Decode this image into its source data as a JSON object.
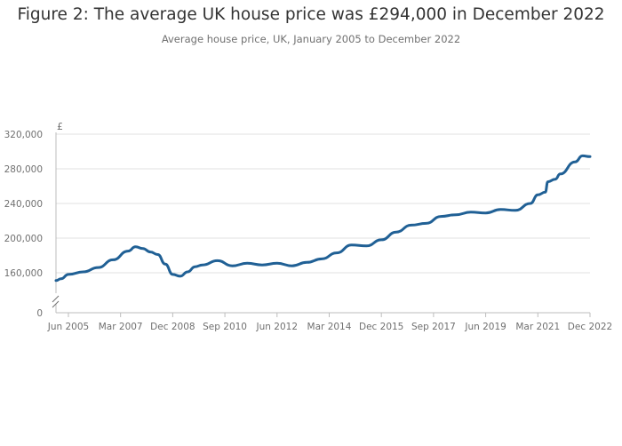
{
  "title": "Figure 2: The average UK house price was £294,000 in December 2022",
  "subtitle": "Average house price, UK, January 2005 to December 2022",
  "chart_data": {
    "type": "line",
    "title": "Figure 2: The average UK house price was £294,000 in December 2022",
    "subtitle": "Average house price, UK, January 2005 to December 2022",
    "y_unit": "£",
    "xlabel": "",
    "ylabel": "",
    "ylim": [
      0,
      320000
    ],
    "y_axis_break": [
      0,
      140000
    ],
    "y_ticks": [
      0,
      160000,
      200000,
      240000,
      280000,
      320000
    ],
    "y_tick_labels": [
      "0",
      "160,000",
      "200,000",
      "240,000",
      "280,000",
      "320,000"
    ],
    "x_range": [
      "Jan 2005",
      "Dec 2022"
    ],
    "x_tick_labels": [
      "Jun 2005",
      "Mar 2007",
      "Dec 2008",
      "Sep 2010",
      "Jun 2012",
      "Mar 2014",
      "Dec 2015",
      "Sep 2017",
      "Jun 2019",
      "Mar 2021",
      "Dec 2022"
    ],
    "grid": true,
    "line_color": "#206095",
    "series": [
      {
        "name": "",
        "x": [
          "Jan 2005",
          "Mar 2005",
          "Jun 2005",
          "Dec 2005",
          "Jun 2006",
          "Dec 2006",
          "Jun 2007",
          "Sep 2007",
          "Dec 2007",
          "Mar 2008",
          "Jun 2008",
          "Sep 2008",
          "Dec 2008",
          "Mar 2009",
          "Jun 2009",
          "Sep 2009",
          "Dec 2009",
          "Jun 2010",
          "Dec 2010",
          "Jun 2011",
          "Dec 2011",
          "Jun 2012",
          "Dec 2012",
          "Jun 2013",
          "Dec 2013",
          "Jun 2014",
          "Dec 2014",
          "Jun 2015",
          "Dec 2015",
          "Jun 2016",
          "Dec 2016",
          "Jun 2017",
          "Dec 2017",
          "Jun 2018",
          "Dec 2018",
          "Jun 2019",
          "Dec 2019",
          "Jun 2020",
          "Dec 2020",
          "Mar 2021",
          "Jun 2021",
          "Jul 2021",
          "Oct 2021",
          "Dec 2021",
          "Jun 2022",
          "Sep 2022",
          "Dec 2022"
        ],
        "values": [
          151000,
          153000,
          158000,
          161000,
          166000,
          175000,
          185000,
          190000,
          188000,
          184000,
          181000,
          170000,
          158000,
          156000,
          161000,
          167000,
          169000,
          174000,
          168000,
          171000,
          169000,
          171000,
          168000,
          172000,
          176000,
          183000,
          192000,
          191000,
          198000,
          207000,
          215000,
          217000,
          225000,
          227000,
          230000,
          229000,
          233000,
          232000,
          240000,
          250000,
          253000,
          265000,
          268000,
          274000,
          288000,
          295000,
          294000
        ]
      }
    ]
  }
}
